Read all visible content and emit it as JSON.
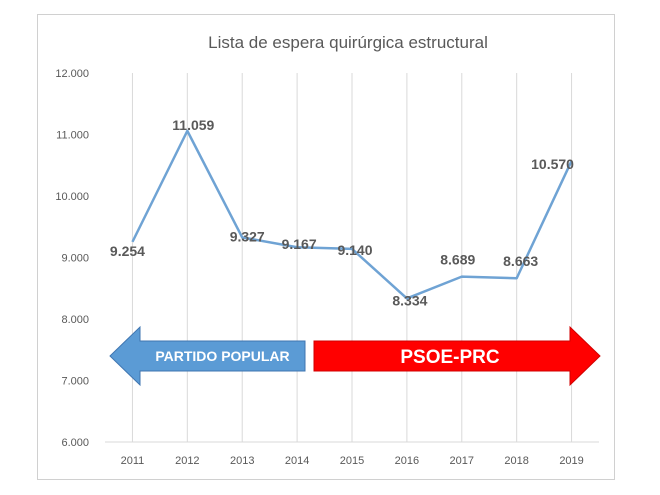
{
  "chart_data": {
    "type": "line",
    "title": "Lista de espera  quirúrgica  estructural",
    "xlabel": "",
    "ylabel": "",
    "categories": [
      "2011",
      "2012",
      "2013",
      "2014",
      "2015",
      "2016",
      "2017",
      "2018",
      "2019"
    ],
    "series": [
      {
        "values": [
          9254,
          11059,
          9327,
          9167,
          9140,
          8334,
          8689,
          8663,
          10570
        ],
        "labels": [
          "9.254",
          "11.059",
          "9.327",
          "9.167",
          "9.140",
          "8.334",
          "8.689",
          "8.663",
          "10.570"
        ],
        "color": "#6fa3d4"
      }
    ],
    "ylim": [
      6000,
      12000
    ],
    "yticks": [
      6000,
      7000,
      8000,
      9000,
      10000,
      11000,
      12000
    ],
    "ytick_labels": [
      "6.000",
      "7.000",
      "8.000",
      "9.000",
      "10.000",
      "11.000",
      "12.000"
    ],
    "grid": "vertical",
    "legend": "none",
    "annotations": [
      {
        "text": "PARTIDO POPULAR",
        "direction": "left",
        "color": "#5b9bd5",
        "from": "2011",
        "to": "2014"
      },
      {
        "text": "PSOE-PRC",
        "direction": "right",
        "color": "#ff0000",
        "from": "2015",
        "to": "2019"
      }
    ]
  }
}
